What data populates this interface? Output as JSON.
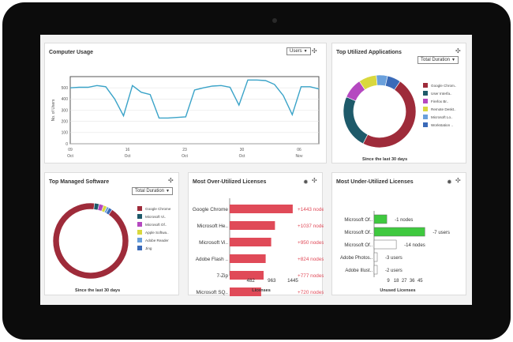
{
  "computer_usage": {
    "title": "Computer Usage",
    "select_value": "Users",
    "ylabel": "No. of Users",
    "chart_data": {
      "type": "line",
      "title": "Computer Usage",
      "ylabel": "No. of Users",
      "xlabel": "",
      "ylim": [
        0,
        600
      ],
      "y_ticks": [
        0,
        100,
        200,
        300,
        400,
        500
      ],
      "x_tick_labels": [
        [
          "09",
          "Oct"
        ],
        [
          "16",
          "Oct"
        ],
        [
          "23",
          "Oct"
        ],
        [
          "30",
          "Oct"
        ],
        [
          "06",
          "Nov"
        ]
      ],
      "series": [
        {
          "values": [
            500,
            505,
            505,
            520,
            510,
            400,
            250,
            520,
            460,
            440,
            230,
            230,
            235,
            240,
            480,
            500,
            515,
            520,
            505,
            345,
            570,
            570,
            565,
            530,
            430,
            260,
            510,
            510,
            490
          ]
        }
      ],
      "color": "#3aa3c8",
      "grid": true
    }
  },
  "top_apps": {
    "title": "Top Utilized Applications",
    "select_value": "Total Duration",
    "caption": "Since the last 30 days",
    "chart_data": {
      "type": "pie",
      "donut": true,
      "categories": [
        "Google Chrom..",
        "User Interfa..",
        "Firefox Br..",
        "Remote Deskt..",
        "Microsoft Lo..",
        "Workstation .."
      ],
      "values": [
        48,
        24,
        9,
        8,
        5,
        6
      ],
      "colors": [
        "#9e2b3a",
        "#1e5a6a",
        "#b548c0",
        "#d9d83e",
        "#6aa0dc",
        "#3a6ab8"
      ]
    }
  },
  "top_software": {
    "title": "Top Managed Software",
    "select_value": "Total Duration",
    "caption": "Since the last 30 days",
    "chart_data": {
      "type": "pie",
      "donut": true,
      "categories": [
        "Google Chrome",
        "Microsoft Vi..",
        "Microsoft Of..",
        "Apple Softwa..",
        "Adobe Reader",
        "Jing"
      ],
      "values": [
        92,
        2,
        2,
        1.5,
        1,
        1.5
      ],
      "colors": [
        "#9e2b3a",
        "#1e5a6a",
        "#b548c0",
        "#d9d83e",
        "#6aa0dc",
        "#3a6ab8"
      ]
    }
  },
  "over_utilized": {
    "title": "Most Over-Utilized Licenses",
    "xlabel": "Licenses",
    "chart_data": {
      "type": "bar",
      "orientation": "horizontal",
      "categories": [
        "Google Chrome",
        "Microsoft He..",
        "Microsoft Vi..",
        "Adobe Flash ..",
        "7-Zip",
        "Microsoft SQ.."
      ],
      "values": [
        1443,
        1037,
        950,
        824,
        777,
        720
      ],
      "data_labels": [
        "+1443 nodes",
        "+1037 nodes",
        "+950 nodes",
        "+824 nodes",
        "+777 nodes",
        "+720 nodes"
      ],
      "x_ticks": [
        482,
        963,
        1445
      ],
      "xlabel": "Licenses",
      "color": "#e04a58",
      "label_color": "#e04a58"
    }
  },
  "under_utilized": {
    "title": "Most Under-Utilized Licenses",
    "xlabel": "Unused Licenses",
    "chart_data": {
      "type": "bar",
      "orientation": "horizontal",
      "categories": [
        "Microsoft Of..",
        "Microsoft Of..",
        "Microsoft Of..",
        "Adobe Photos..",
        "Adobe Illust.."
      ],
      "values": [
        4,
        16,
        7,
        1,
        1
      ],
      "data_labels": [
        "-1 nodes",
        "-7 users",
        "-14 nodes",
        "-3 users",
        "-2 users"
      ],
      "x_ticks": [
        9,
        18,
        27,
        36,
        45
      ],
      "xlabel": "Unused Licenses",
      "fills": [
        "#3fc93f",
        "#3fc93f",
        "#ffffff",
        "#ffffff",
        "#ffffff"
      ]
    }
  }
}
